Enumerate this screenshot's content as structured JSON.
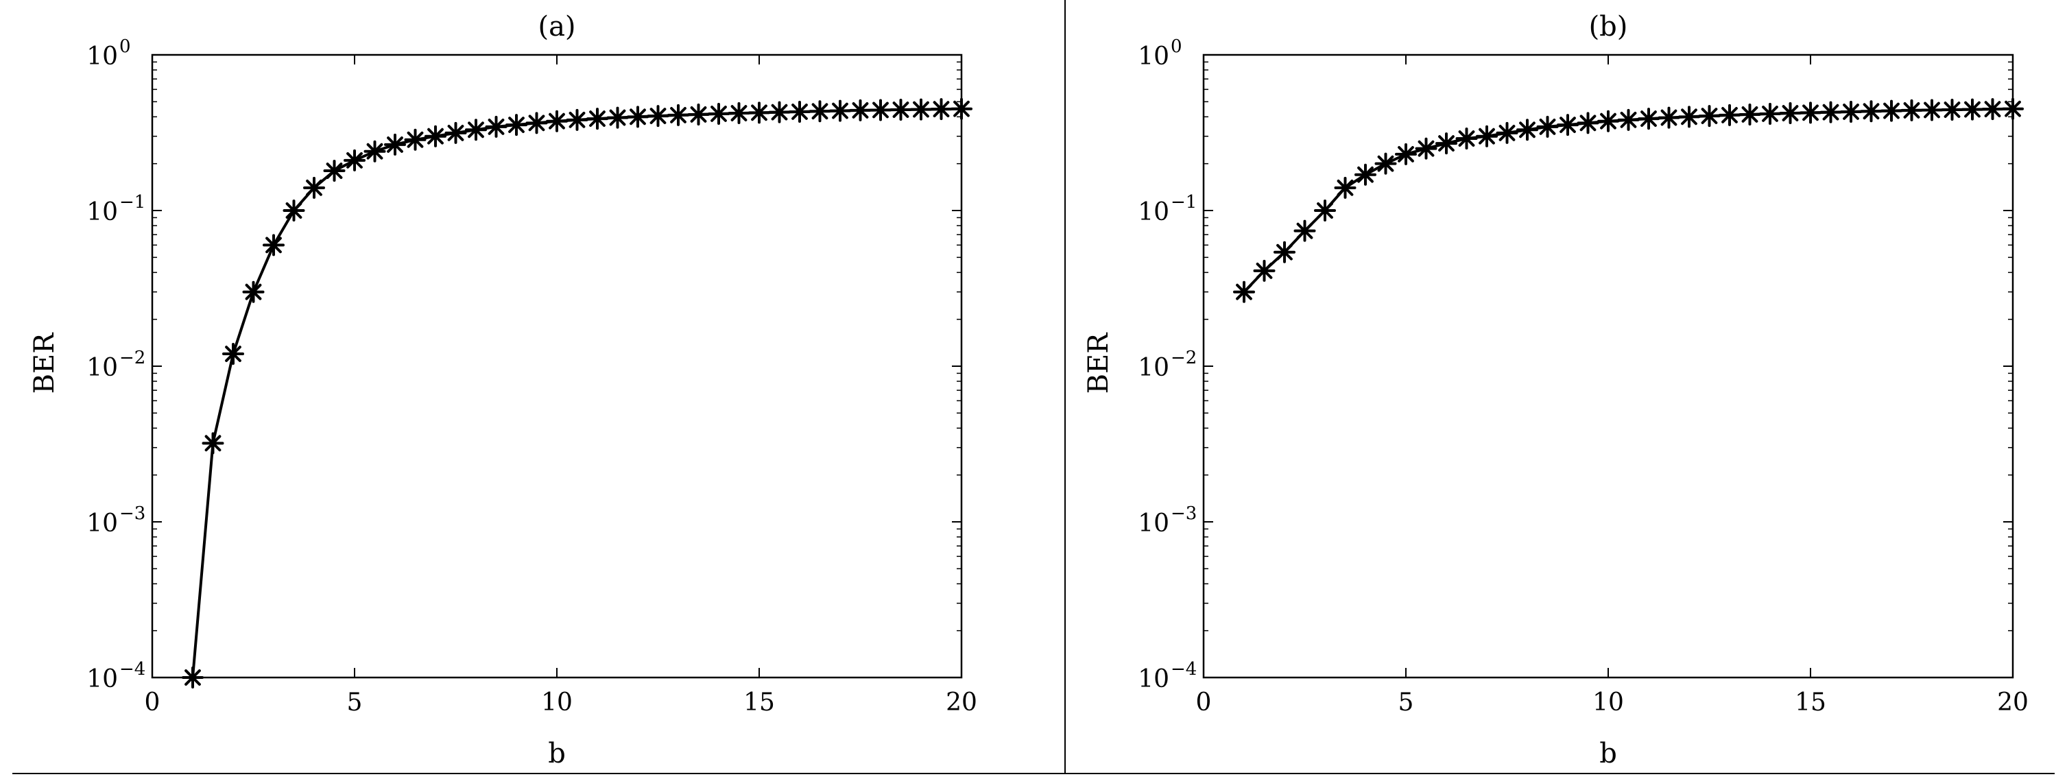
{
  "chart_data": [
    {
      "type": "line",
      "title": "(a)",
      "xlabel": "b",
      "ylabel": "BER",
      "xlim": [
        0,
        20
      ],
      "ylim": [
        0.0001,
        1
      ],
      "yscale": "log",
      "grid": false,
      "legend": "none",
      "marker": "asterisk",
      "x_ticks": [
        "0",
        "5",
        "10",
        "15",
        "20"
      ],
      "y_ticks": [
        "10^-4",
        "10^-3",
        "10^-2",
        "10^-1",
        "10^0"
      ],
      "series": [
        {
          "color": "#000000",
          "x": [
            1,
            1.5,
            2,
            2.5,
            3,
            3.5,
            4,
            4.5,
            5,
            5.5,
            6,
            6.5,
            7,
            7.5,
            8,
            8.5,
            9,
            9.5,
            10,
            10.5,
            11,
            11.5,
            12,
            12.5,
            13,
            13.5,
            14,
            14.5,
            15,
            15.5,
            16,
            16.5,
            17,
            17.5,
            18,
            18.5,
            19,
            19.5,
            20
          ],
          "y": [
            0.0001,
            0.0032,
            0.012,
            0.03,
            0.06,
            0.1,
            0.14,
            0.18,
            0.21,
            0.24,
            0.265,
            0.285,
            0.3,
            0.315,
            0.33,
            0.345,
            0.355,
            0.365,
            0.375,
            0.382,
            0.389,
            0.395,
            0.4,
            0.405,
            0.41,
            0.414,
            0.418,
            0.422,
            0.425,
            0.428,
            0.431,
            0.434,
            0.437,
            0.44,
            0.442,
            0.444,
            0.446,
            0.448,
            0.45
          ]
        }
      ]
    },
    {
      "type": "line",
      "title": "(b)",
      "xlabel": "b",
      "ylabel": "BER",
      "xlim": [
        0,
        20
      ],
      "ylim": [
        0.0001,
        1
      ],
      "yscale": "log",
      "grid": false,
      "legend": "none",
      "marker": "asterisk",
      "x_ticks": [
        "0",
        "5",
        "10",
        "15",
        "20"
      ],
      "y_ticks": [
        "10^-4",
        "10^-3",
        "10^-2",
        "10^-1",
        "10^0"
      ],
      "series": [
        {
          "color": "#000000",
          "x": [
            1,
            1.5,
            2,
            2.5,
            3,
            3.5,
            4,
            4.5,
            5,
            5.5,
            6,
            6.5,
            7,
            7.5,
            8,
            8.5,
            9,
            9.5,
            10,
            10.5,
            11,
            11.5,
            12,
            12.5,
            13,
            13.5,
            14,
            14.5,
            15,
            15.5,
            16,
            16.5,
            17,
            17.5,
            18,
            18.5,
            19,
            19.5,
            20
          ],
          "y": [
            0.03,
            0.041,
            0.054,
            0.074,
            0.1,
            0.14,
            0.17,
            0.2,
            0.23,
            0.25,
            0.27,
            0.29,
            0.3,
            0.315,
            0.33,
            0.345,
            0.355,
            0.365,
            0.375,
            0.382,
            0.389,
            0.395,
            0.4,
            0.405,
            0.41,
            0.414,
            0.418,
            0.422,
            0.425,
            0.428,
            0.431,
            0.434,
            0.437,
            0.44,
            0.442,
            0.444,
            0.446,
            0.448,
            0.45
          ]
        }
      ]
    }
  ]
}
